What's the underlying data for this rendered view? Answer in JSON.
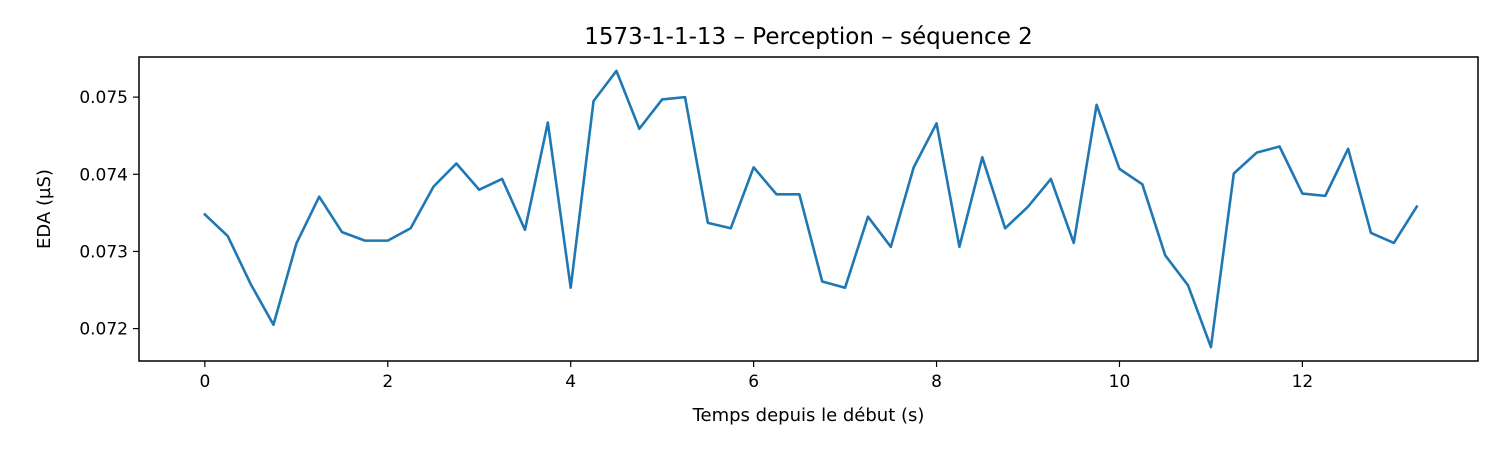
{
  "chart_data": {
    "type": "line",
    "title": "1573-1-1-13 – Perception – séquence 2",
    "xlabel": "Temps depuis le début (s)",
    "ylabel": "EDA (µS)",
    "xlim": [
      -0.72,
      13.92
    ],
    "ylim": [
      0.07158,
      0.07552
    ],
    "grid": false,
    "x_ticks": [
      0,
      2,
      4,
      6,
      8,
      10,
      12
    ],
    "x_tick_labels": [
      "0",
      "2",
      "4",
      "6",
      "8",
      "10",
      "12"
    ],
    "y_ticks": [
      0.072,
      0.073,
      0.074,
      0.075
    ],
    "y_tick_labels": [
      "0.072",
      "0.073",
      "0.074",
      "0.075"
    ],
    "series": [
      {
        "color": "#1f77b4",
        "x": [
          0,
          0.25,
          0.5,
          0.75,
          1,
          1.25,
          1.5,
          1.75,
          2,
          2.25,
          2.5,
          2.75,
          3,
          3.25,
          3.5,
          3.75,
          4,
          4.25,
          4.5,
          4.75,
          5,
          5.25,
          5.5,
          5.75,
          6,
          6.25,
          6.5,
          6.75,
          7,
          7.25,
          7.5,
          7.75,
          8,
          8.25,
          8.5,
          8.75,
          9,
          9.25,
          9.5,
          9.75,
          10,
          10.25,
          10.5,
          10.75,
          11,
          11.25,
          11.5,
          11.75,
          12,
          12.25,
          12.5,
          12.75,
          13,
          13.25
        ],
        "y": [
          0.07348,
          0.0732,
          0.07258,
          0.07205,
          0.0731,
          0.07371,
          0.07325,
          0.07314,
          0.07314,
          0.0733,
          0.07384,
          0.07414,
          0.0738,
          0.07394,
          0.07328,
          0.07467,
          0.07253,
          0.07495,
          0.07534,
          0.07459,
          0.07497,
          0.075,
          0.07337,
          0.0733,
          0.07409,
          0.07374,
          0.07374,
          0.07261,
          0.07253,
          0.07345,
          0.07306,
          0.07409,
          0.07466,
          0.07306,
          0.07422,
          0.0733,
          0.07358,
          0.07394,
          0.07311,
          0.0749,
          0.07407,
          0.07387,
          0.07295,
          0.07256,
          0.07176,
          0.07401,
          0.07428,
          0.07436,
          0.07375,
          0.07372,
          0.07433,
          0.07324,
          0.07311,
          0.07358
        ]
      }
    ]
  }
}
